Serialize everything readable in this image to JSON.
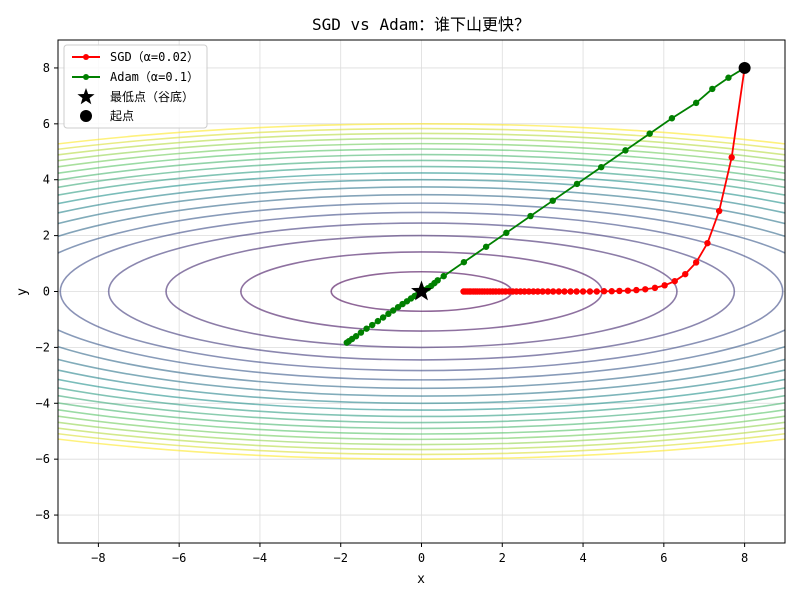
{
  "chart_data": {
    "type": "line",
    "title": "SGD vs Adam：谁下山更快？",
    "xlabel": "x",
    "ylabel": "y",
    "xlim": [
      -9,
      9
    ],
    "ylim": [
      -9,
      9
    ],
    "xticks": [
      -8,
      -6,
      -4,
      -2,
      0,
      2,
      4,
      6,
      8
    ],
    "yticks": [
      -8,
      -6,
      -4,
      -2,
      0,
      2,
      4,
      6,
      8
    ],
    "grid": true,
    "legend_position": "top-left",
    "contour_levels": [
      5,
      20,
      40,
      60,
      80,
      100,
      120,
      140,
      160,
      180,
      200,
      220,
      240,
      260,
      280,
      300,
      320,
      340,
      360
    ],
    "series": [
      {
        "name": "SGD（α=0.02）",
        "color": "#ff0000",
        "marker": "circle",
        "x": [
          8.0,
          7.68,
          7.37,
          7.08,
          6.8,
          6.53,
          6.27,
          6.02,
          5.78,
          5.54,
          5.32,
          5.11,
          4.9,
          4.71,
          4.52,
          4.34,
          4.17,
          4.0,
          3.84,
          3.69,
          3.54,
          3.4,
          3.26,
          3.13,
          3.0,
          2.88,
          2.77,
          2.66,
          2.55,
          2.45,
          2.35,
          2.26,
          2.17,
          2.08,
          2.0,
          1.92,
          1.84,
          1.77,
          1.7,
          1.63,
          1.56,
          1.5,
          1.44,
          1.38,
          1.33,
          1.28,
          1.22,
          1.18,
          1.13,
          1.08,
          1.04
        ],
        "y": [
          8.0,
          4.8,
          2.88,
          1.73,
          1.04,
          0.62,
          0.37,
          0.22,
          0.13,
          0.08,
          0.05,
          0.03,
          0.02,
          0.01,
          0.01,
          0.0,
          0.0,
          0.0,
          0.0,
          0.0,
          0.0,
          0.0,
          0.0,
          0.0,
          0.0,
          0.0,
          0.0,
          0.0,
          0.0,
          0.0,
          0.0,
          0.0,
          0.0,
          0.0,
          0.0,
          0.0,
          0.0,
          0.0,
          0.0,
          0.0,
          0.0,
          0.0,
          0.0,
          0.0,
          0.0,
          0.0,
          0.0,
          0.0,
          0.0,
          0.0,
          0.0
        ]
      },
      {
        "name": "Adam（α=0.1）",
        "color": "#008000",
        "marker": "circle",
        "x": [
          8.0,
          7.6,
          7.2,
          6.8,
          6.2,
          5.65,
          5.05,
          4.45,
          3.85,
          3.25,
          2.7,
          2.1,
          1.6,
          1.05,
          0.55,
          0.4,
          0.32,
          0.24,
          0.16,
          0.08,
          0.0,
          -0.08,
          -0.17,
          -0.26,
          -0.36,
          -0.47,
          -0.58,
          -0.7,
          -0.82,
          -0.95,
          -1.08,
          -1.22,
          -1.36,
          -1.5,
          -1.62,
          -1.72,
          -1.8,
          -1.85
        ],
        "y": [
          8.0,
          7.65,
          7.25,
          6.75,
          6.2,
          5.65,
          5.05,
          4.45,
          3.85,
          3.25,
          2.7,
          2.1,
          1.6,
          1.05,
          0.55,
          0.4,
          0.3,
          0.2,
          0.12,
          0.05,
          0.0,
          -0.08,
          -0.16,
          -0.25,
          -0.35,
          -0.45,
          -0.56,
          -0.68,
          -0.8,
          -0.93,
          -1.06,
          -1.2,
          -1.33,
          -1.47,
          -1.6,
          -1.7,
          -1.78,
          -1.83
        ]
      }
    ],
    "markers": [
      {
        "name": "最低点（谷底）",
        "x": 0,
        "y": 0,
        "shape": "star",
        "color": "#000000"
      },
      {
        "name": "起点",
        "x": 8,
        "y": 8,
        "shape": "circle",
        "color": "#000000"
      }
    ]
  }
}
